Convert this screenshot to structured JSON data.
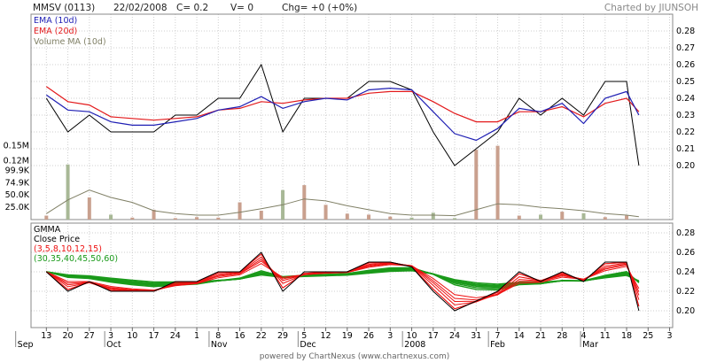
{
  "header": {
    "symbol": "MMSV (0113)",
    "date": "22/02/2008",
    "close": "C= 0.2",
    "volume": "V= 0",
    "change": "Chg= +0 (+0%)",
    "credit": "Charted by JIUNSOH"
  },
  "footer": "powered by ChartNexus (www.chartnexus.com)",
  "colors": {
    "price": "#000000",
    "ema10": "#1f1fb4",
    "ema20": "#e31a1c",
    "volume_ma": "#808066",
    "vol_up": "#c9a08e",
    "vol_down": "#a8b896",
    "gmma_short": "#ee1111",
    "gmma_long": "#1a9a1a",
    "grid": "#cfcfcf"
  },
  "chart_data": [
    {
      "type": "line",
      "panel": "price-volume",
      "legend": [
        "EMA (10d)",
        "EMA (20d)",
        "Volume MA (10d)"
      ],
      "price_ylim": [
        0.19,
        0.29
      ],
      "price_ticks": [
        "0.28",
        "0.27",
        "0.26",
        "0.25",
        "0.24",
        "0.23",
        "0.22",
        "0.21",
        "0.20"
      ],
      "volume_ylim": [
        0,
        180000
      ],
      "volume_ticks": [
        "0.15M",
        "0.12M",
        "99.9K",
        "74.9K",
        "50.0K",
        "25.0K"
      ],
      "grid": true,
      "x": [
        "2007-08-13",
        "2007-08-20",
        "2007-08-27",
        "2007-09-03",
        "2007-09-10",
        "2007-09-17",
        "2007-09-24",
        "2007-10-01",
        "2007-10-08",
        "2007-10-15",
        "2007-10-22",
        "2007-10-29",
        "2007-11-05",
        "2007-11-12",
        "2007-11-19",
        "2007-11-26",
        "2007-12-03",
        "2007-12-10",
        "2007-12-17",
        "2007-12-24",
        "2007-12-31",
        "2008-01-07",
        "2008-01-14",
        "2008-01-21",
        "2008-01-28",
        "2008-02-04",
        "2008-02-11",
        "2008-02-18",
        "2008-02-22"
      ],
      "close": [
        0.24,
        0.22,
        0.23,
        0.22,
        0.22,
        0.22,
        0.23,
        0.23,
        0.24,
        0.24,
        0.26,
        0.22,
        0.24,
        0.24,
        0.24,
        0.25,
        0.25,
        0.245,
        0.22,
        0.2,
        0.21,
        0.22,
        0.24,
        0.23,
        0.24,
        0.23,
        0.25,
        0.25,
        0.2
      ],
      "ema10": [
        0.242,
        0.233,
        0.232,
        0.226,
        0.224,
        0.224,
        0.226,
        0.228,
        0.233,
        0.235,
        0.241,
        0.234,
        0.238,
        0.24,
        0.239,
        0.245,
        0.246,
        0.245,
        0.232,
        0.219,
        0.215,
        0.222,
        0.234,
        0.232,
        0.237,
        0.225,
        0.24,
        0.244,
        0.23
      ],
      "ema20": [
        0.247,
        0.238,
        0.236,
        0.229,
        0.228,
        0.227,
        0.228,
        0.229,
        0.233,
        0.234,
        0.238,
        0.237,
        0.239,
        0.24,
        0.24,
        0.243,
        0.244,
        0.244,
        0.238,
        0.231,
        0.226,
        0.226,
        0.232,
        0.232,
        0.235,
        0.229,
        0.237,
        0.24,
        0.232
      ],
      "volume": [
        8000,
        112000,
        45000,
        10000,
        4000,
        20000,
        3000,
        5000,
        4000,
        35000,
        18000,
        60000,
        70000,
        30000,
        12000,
        10000,
        6000,
        4000,
        14000,
        3000,
        142000,
        150000,
        8000,
        10000,
        16000,
        13000,
        5000,
        8000,
        0
      ],
      "volume_ma": [
        12000,
        40000,
        60000,
        45000,
        35000,
        18000,
        12000,
        9000,
        9000,
        15000,
        22000,
        30000,
        42000,
        38000,
        28000,
        20000,
        12000,
        9000,
        9000,
        8000,
        20000,
        32000,
        30000,
        25000,
        22000,
        18000,
        12000,
        9000,
        6000
      ]
    },
    {
      "type": "line",
      "panel": "gmma",
      "legend": [
        "GMMA",
        "Close Price",
        "(3,5,8,10,12,15)",
        "(30,35,40,45,50,60)"
      ],
      "ylim": [
        0.19,
        0.29
      ],
      "ticks": [
        "0.28",
        "0.26",
        "0.24",
        "0.22",
        "0.20"
      ],
      "grid": true,
      "short_periods": [
        3,
        5,
        8,
        10,
        12,
        15
      ],
      "long_periods": [
        30,
        35,
        40,
        45,
        50,
        60
      ]
    }
  ],
  "x_axis": {
    "days": [
      "13",
      "20",
      "27",
      "3",
      "10",
      "17",
      "24",
      "1",
      "8",
      "16",
      "22",
      "29",
      "5",
      "12",
      "19",
      "26",
      "3",
      "10",
      "17",
      "24",
      "31",
      "7",
      "14",
      "21",
      "28",
      "4",
      "11",
      "18",
      "25",
      "3"
    ],
    "months": [
      "Sep",
      "Oct",
      "Nov",
      "Dec",
      "2008",
      "Feb",
      "Mar"
    ]
  }
}
